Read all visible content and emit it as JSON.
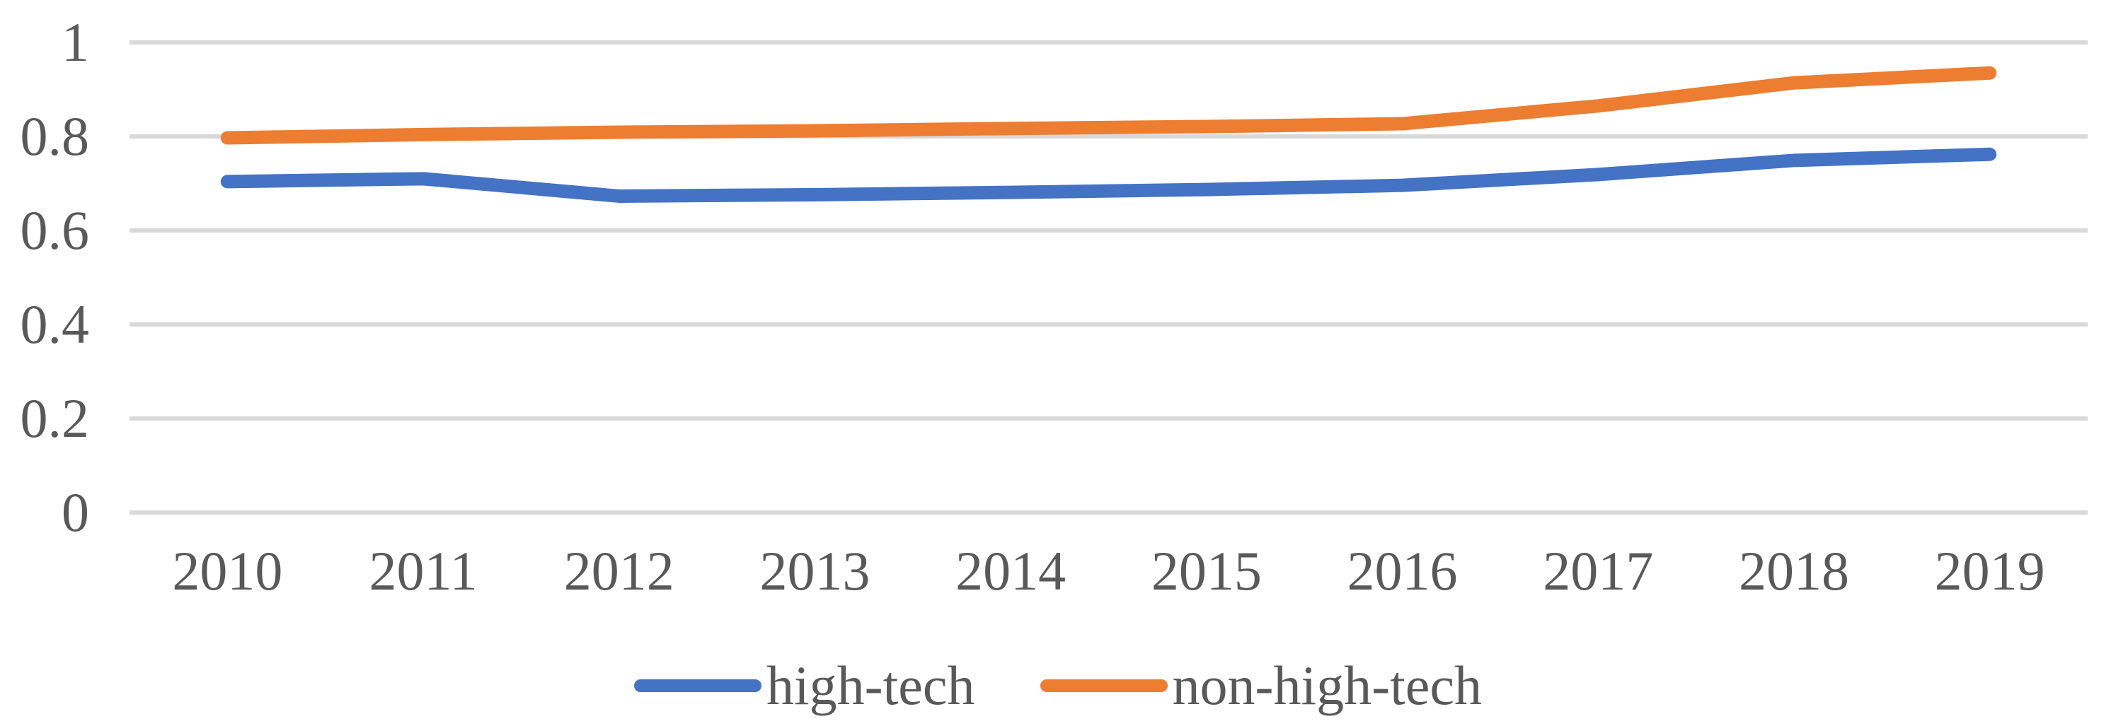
{
  "chart_data": {
    "type": "line",
    "title": "",
    "xlabel": "",
    "ylabel": "",
    "categories": [
      "2010",
      "2011",
      "2012",
      "2013",
      "2014",
      "2015",
      "2016",
      "2017",
      "2018",
      "2019"
    ],
    "series": [
      {
        "name": "high-tech",
        "color": "#4472C4",
        "values": [
          0.704,
          0.71,
          0.673,
          0.676,
          0.681,
          0.687,
          0.696,
          0.719,
          0.749,
          0.762
        ]
      },
      {
        "name": "non-high-tech",
        "color": "#ED7D31",
        "values": [
          0.797,
          0.804,
          0.809,
          0.812,
          0.817,
          0.821,
          0.827,
          0.865,
          0.914,
          0.935
        ]
      }
    ],
    "ylim": [
      0,
      1
    ],
    "yticks": [
      {
        "value": 1,
        "label": "1"
      },
      {
        "value": 0.8,
        "label": "0.8"
      },
      {
        "value": 0.6,
        "label": "0.6"
      },
      {
        "value": 0.4,
        "label": "0.4"
      },
      {
        "value": 0.2,
        "label": "0.2"
      },
      {
        "value": 0,
        "label": "0"
      }
    ],
    "grid": true,
    "legend_position": "bottom"
  },
  "colors": {
    "grid": "#D9D9D9",
    "text": "#595959",
    "background": "#FFFFFF"
  }
}
